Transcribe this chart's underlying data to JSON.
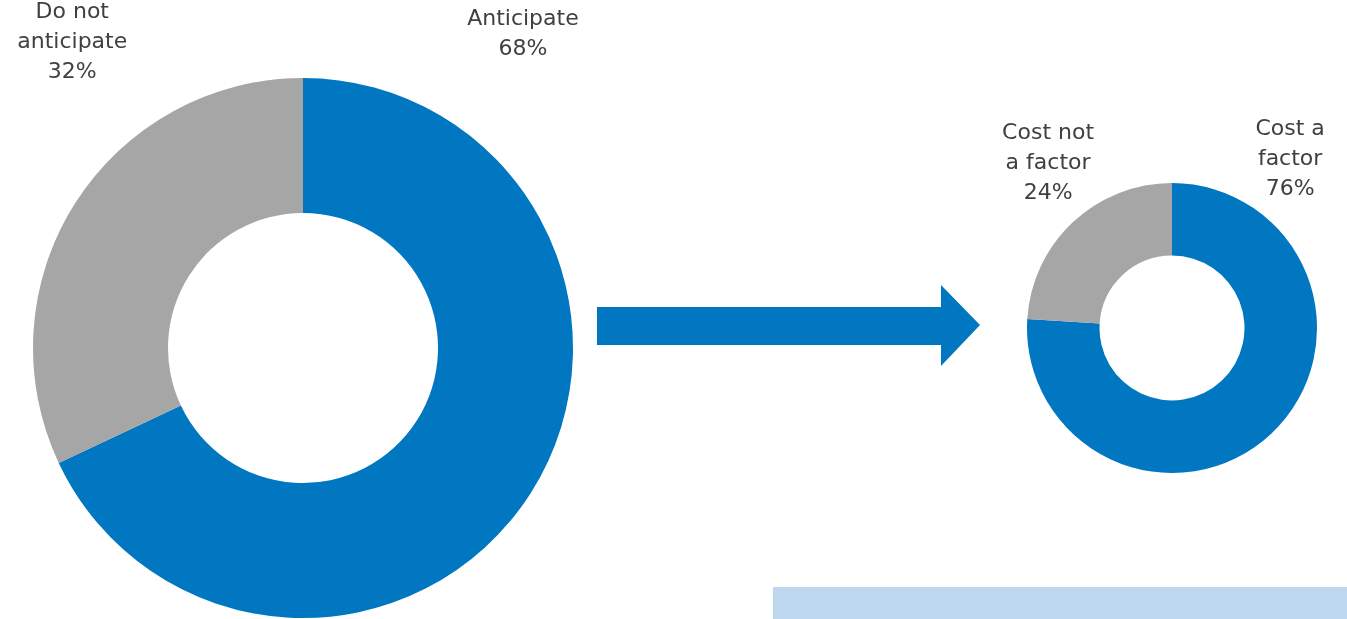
{
  "chart_data": [
    {
      "type": "donut",
      "categories": [
        "Anticipate",
        "Do not anticipate"
      ],
      "values": [
        68,
        32
      ],
      "colors": [
        "#0077c0",
        "#a6a6a6"
      ],
      "value_labels": [
        "68%",
        "32%"
      ],
      "legend": false
    },
    {
      "type": "donut",
      "categories": [
        "Cost a factor",
        "Cost not a factor"
      ],
      "values": [
        76,
        24
      ],
      "colors": [
        "#0077c0",
        "#a6a6a6"
      ],
      "value_labels": [
        "76%",
        "24%"
      ],
      "legend": false
    }
  ]
}
